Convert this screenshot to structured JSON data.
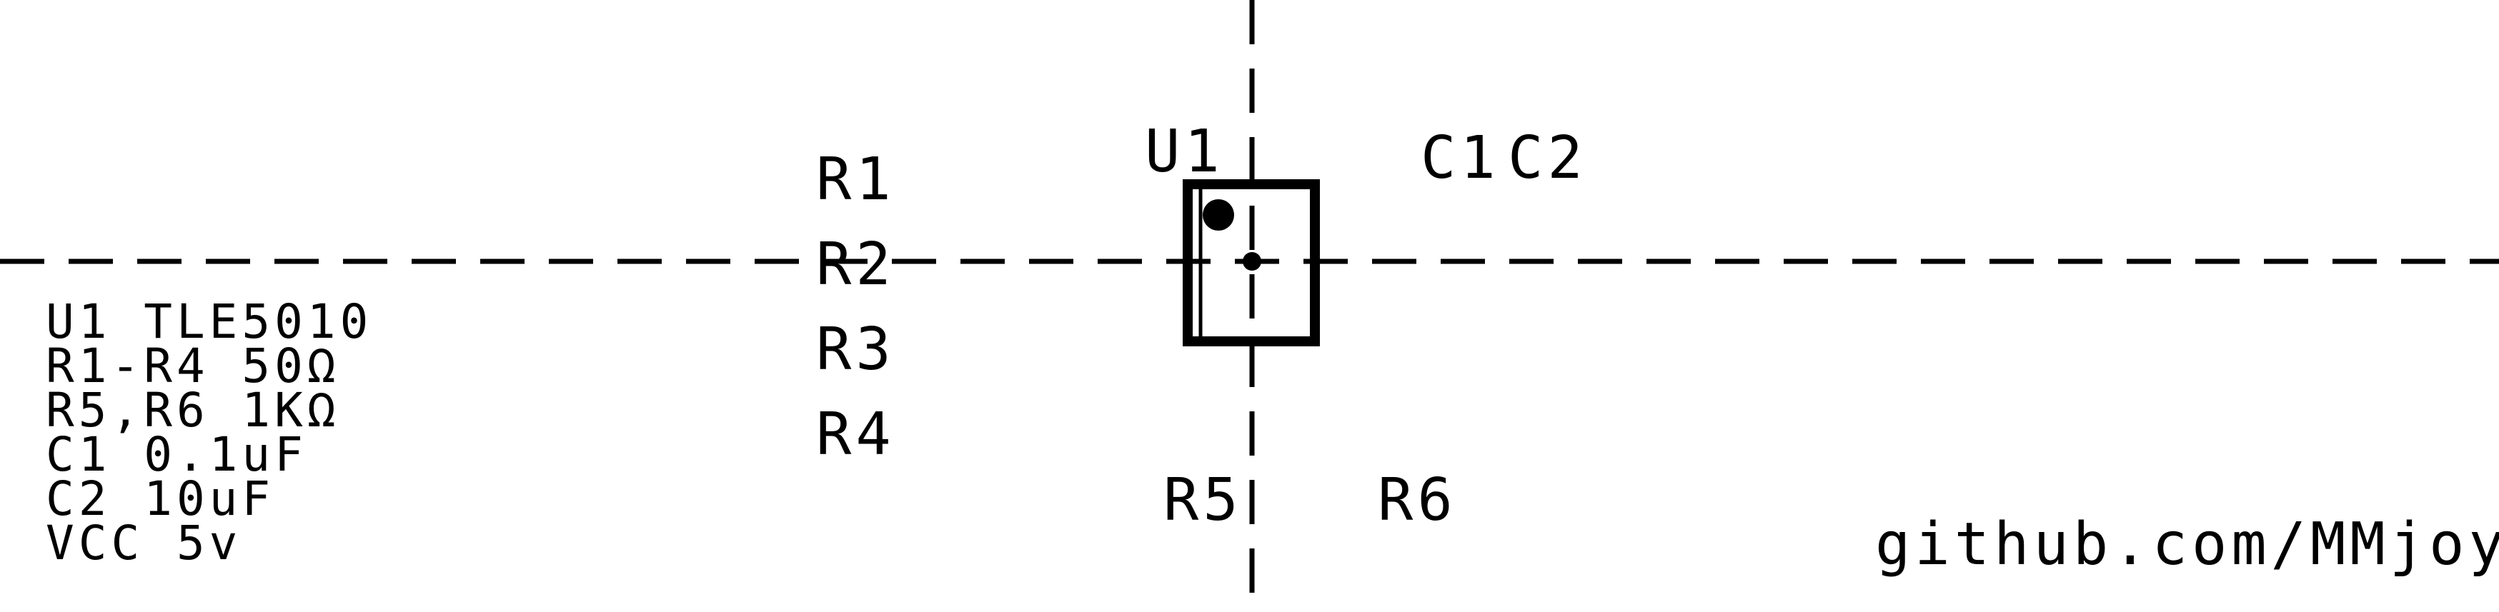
{
  "designators": {
    "u1": "U1",
    "r1": "R1",
    "r2": "R2",
    "r3": "R3",
    "r4": "R4",
    "r5": "R5",
    "r6": "R6",
    "c1": "C1",
    "c2": "C2"
  },
  "parts_list": [
    "U1 TLE5010",
    "R1-R4 50Ω",
    "R5,R6 1KΩ",
    "C1 0.1uF",
    "C2 10uF",
    "VCC 5v"
  ],
  "footer": {
    "url": "github.com/MMjoy"
  },
  "colors": {
    "ink": "#000000",
    "board": "#ffffff"
  }
}
